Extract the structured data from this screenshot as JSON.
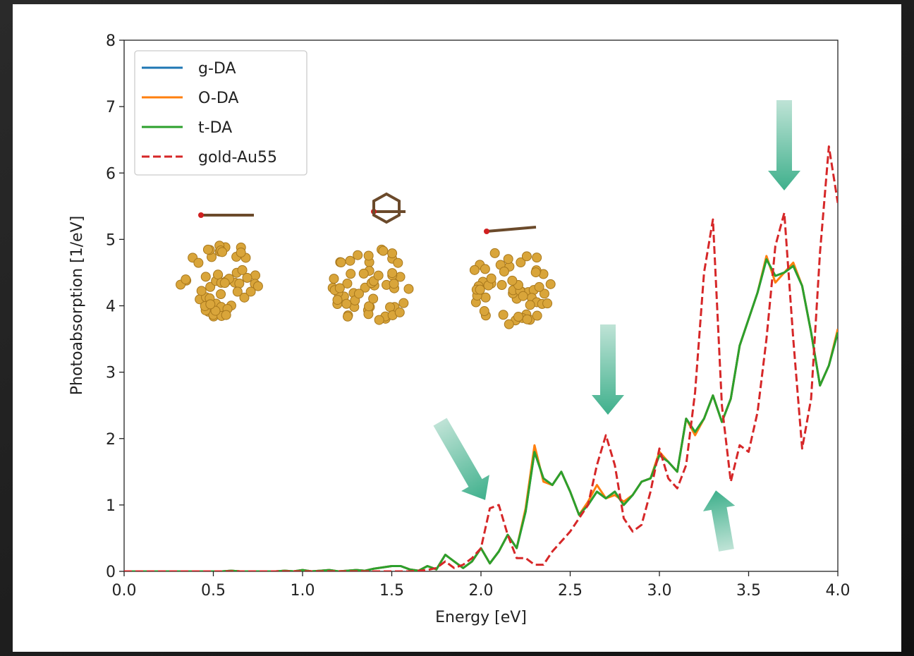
{
  "chart_data": {
    "type": "line",
    "xlabel": "Energy [eV]",
    "ylabel": "Photoabsorption [1/eV]",
    "xlim": [
      0,
      4
    ],
    "ylim": [
      0,
      8
    ],
    "xticks": [
      {
        "value": 0,
        "label": "0.0"
      },
      0.5,
      {
        "value": 1,
        "label": "1.0"
      },
      1.5,
      {
        "value": 2,
        "label": "2.0"
      },
      2.5,
      {
        "value": 3,
        "label": "3.0"
      },
      3.5,
      {
        "value": 4,
        "label": "4.0"
      }
    ],
    "yticks": [
      0,
      1,
      2,
      3,
      4,
      5,
      6,
      7,
      8
    ],
    "legend": "upper left",
    "x": [
      0,
      0.05,
      0.1,
      0.15,
      0.2,
      0.25,
      0.3,
      0.35,
      0.4,
      0.45,
      0.5,
      0.55,
      0.6,
      0.65,
      0.7,
      0.75,
      0.8,
      0.85,
      0.9,
      0.95,
      1,
      1.05,
      1.1,
      1.15,
      1.2,
      1.25,
      1.3,
      1.35,
      1.4,
      1.45,
      1.5,
      1.55,
      1.6,
      1.65,
      1.7,
      1.75,
      1.8,
      1.85,
      1.9,
      1.95,
      2,
      2.05,
      2.1,
      2.15,
      2.2,
      2.25,
      2.3,
      2.35,
      2.4,
      2.45,
      2.5,
      2.55,
      2.6,
      2.65,
      2.7,
      2.75,
      2.8,
      2.85,
      2.9,
      2.95,
      3,
      3.05,
      3.1,
      3.15,
      3.2,
      3.25,
      3.3,
      3.35,
      3.4,
      3.45,
      3.5,
      3.55,
      3.6,
      3.65,
      3.7,
      3.75,
      3.8,
      3.85,
      3.9,
      3.95,
      4
    ],
    "series": [
      {
        "name": "g-DA",
        "color": "#1f77b4",
        "dash": false,
        "values": [
          0,
          0,
          0,
          0,
          0,
          0,
          0,
          0,
          0,
          0,
          0,
          0,
          0.01,
          0,
          0,
          0,
          0,
          0,
          0.01,
          0,
          0.02,
          0,
          0.01,
          0.02,
          0,
          0.01,
          0.02,
          0.01,
          0.04,
          0.06,
          0.08,
          0.08,
          0.03,
          0.01,
          0.08,
          0.03,
          0.25,
          0.15,
          0.05,
          0.15,
          0.35,
          0.12,
          0.3,
          0.55,
          0.35,
          0.9,
          1.8,
          1.4,
          1.3,
          1.5,
          1.2,
          0.85,
          1.0,
          1.2,
          1.1,
          1.2,
          1.0,
          1.15,
          1.35,
          1.4,
          1.75,
          1.65,
          1.5,
          2.3,
          2.1,
          2.3,
          2.65,
          2.25,
          2.6,
          3.4,
          3.8,
          4.2,
          4.7,
          4.45,
          4.5,
          4.6,
          4.3,
          3.6,
          2.8,
          3.1,
          3.6
        ]
      },
      {
        "name": "O-DA",
        "color": "#ff7f0e",
        "dash": false,
        "values": [
          0,
          0,
          0,
          0,
          0,
          0,
          0,
          0,
          0,
          0,
          0,
          0,
          0.01,
          0,
          0,
          0,
          0,
          0,
          0.01,
          0,
          0.02,
          0,
          0.01,
          0.02,
          0,
          0.01,
          0.02,
          0.01,
          0.04,
          0.06,
          0.08,
          0.08,
          0.03,
          0.01,
          0.08,
          0.03,
          0.25,
          0.15,
          0.05,
          0.15,
          0.35,
          0.12,
          0.3,
          0.55,
          0.35,
          0.95,
          1.9,
          1.35,
          1.3,
          1.5,
          1.2,
          0.85,
          1.05,
          1.3,
          1.1,
          1.15,
          1.05,
          1.15,
          1.35,
          1.4,
          1.8,
          1.65,
          1.5,
          2.3,
          2.05,
          2.3,
          2.65,
          2.25,
          2.6,
          3.4,
          3.8,
          4.2,
          4.75,
          4.35,
          4.5,
          4.65,
          4.3,
          3.6,
          2.8,
          3.1,
          3.65
        ]
      },
      {
        "name": "t-DA",
        "color": "#2ca02c",
        "dash": false,
        "values": [
          0,
          0,
          0,
          0,
          0,
          0,
          0,
          0,
          0,
          0,
          0,
          0,
          0.01,
          0,
          0,
          0,
          0,
          0,
          0.01,
          0,
          0.02,
          0,
          0.01,
          0.02,
          0,
          0.01,
          0.02,
          0.01,
          0.04,
          0.06,
          0.08,
          0.08,
          0.03,
          0.01,
          0.08,
          0.03,
          0.25,
          0.15,
          0.05,
          0.15,
          0.35,
          0.12,
          0.3,
          0.55,
          0.35,
          0.9,
          1.8,
          1.4,
          1.3,
          1.5,
          1.2,
          0.85,
          1.0,
          1.2,
          1.1,
          1.2,
          1.0,
          1.15,
          1.35,
          1.4,
          1.75,
          1.65,
          1.5,
          2.3,
          2.1,
          2.3,
          2.65,
          2.25,
          2.6,
          3.4,
          3.8,
          4.2,
          4.7,
          4.45,
          4.5,
          4.6,
          4.3,
          3.6,
          2.8,
          3.1,
          3.6
        ]
      },
      {
        "name": "gold-Au55",
        "color": "#d62728",
        "dash": true,
        "values": [
          0,
          0,
          0,
          0,
          0,
          0,
          0,
          0,
          0,
          0,
          0,
          0,
          0,
          0,
          0,
          0,
          0,
          0,
          0,
          0,
          0,
          0,
          0,
          0,
          0,
          0,
          0,
          0,
          0,
          0,
          0,
          0,
          0,
          0.01,
          0.02,
          0.05,
          0.15,
          0.05,
          0.1,
          0.2,
          0.35,
          0.95,
          1.0,
          0.55,
          0.2,
          0.2,
          0.1,
          0.1,
          0.3,
          0.45,
          0.6,
          0.8,
          1.0,
          1.6,
          2.05,
          1.6,
          0.8,
          0.6,
          0.7,
          1.2,
          1.85,
          1.4,
          1.25,
          1.6,
          2.7,
          4.5,
          5.3,
          2.5,
          1.35,
          1.9,
          1.8,
          2.4,
          3.5,
          4.9,
          5.4,
          3.5,
          1.85,
          2.6,
          4.8,
          6.4,
          5.55
        ]
      }
    ]
  }
}
